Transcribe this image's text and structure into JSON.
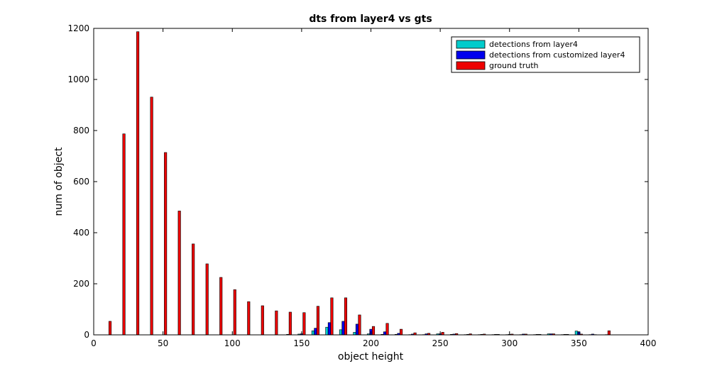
{
  "chart_data": {
    "type": "bar",
    "title": "dts from layer4 vs gts",
    "xlabel": "object height",
    "ylabel": "num of object",
    "xlim": [
      0,
      400
    ],
    "ylim": [
      0,
      1200
    ],
    "xticks": [
      0,
      50,
      100,
      150,
      200,
      250,
      300,
      350,
      400
    ],
    "yticks": [
      0,
      200,
      400,
      600,
      800,
      1000,
      1200
    ],
    "grid": false,
    "legend_position": "top-right",
    "bin_width": 10,
    "x": [
      10,
      20,
      30,
      40,
      50,
      60,
      70,
      80,
      90,
      100,
      110,
      120,
      130,
      140,
      150,
      160,
      170,
      180,
      190,
      200,
      210,
      220,
      230,
      240,
      250,
      260,
      270,
      280,
      290,
      300,
      310,
      320,
      330,
      340,
      350,
      360,
      370
    ],
    "series": [
      {
        "name": "detections from layer4",
        "color": "#00cccc",
        "values": [
          0,
          0,
          0,
          0,
          0,
          0,
          0,
          0,
          0,
          0,
          0,
          0,
          0,
          0,
          3,
          16,
          30,
          20,
          10,
          4,
          2,
          2,
          1,
          1,
          4,
          2,
          1,
          1,
          1,
          1,
          1,
          1,
          4,
          1,
          15,
          1,
          0
        ]
      },
      {
        "name": "detections from customized layer4",
        "color": "#0000ee",
        "values": [
          0,
          0,
          0,
          0,
          0,
          0,
          0,
          0,
          0,
          0,
          0,
          0,
          0,
          2,
          4,
          26,
          48,
          53,
          42,
          22,
          12,
          6,
          3,
          4,
          4,
          3,
          2,
          2,
          2,
          2,
          3,
          2,
          4,
          2,
          12,
          3,
          1
        ]
      },
      {
        "name": "ground truth",
        "color": "#ee0000",
        "values": [
          53,
          787,
          1187,
          931,
          714,
          485,
          356,
          278,
          225,
          177,
          130,
          114,
          94,
          89,
          87,
          112,
          145,
          145,
          78,
          33,
          45,
          22,
          8,
          6,
          10,
          5,
          4,
          3,
          2,
          3,
          3,
          2,
          4,
          2,
          3,
          1,
          16
        ]
      }
    ]
  }
}
